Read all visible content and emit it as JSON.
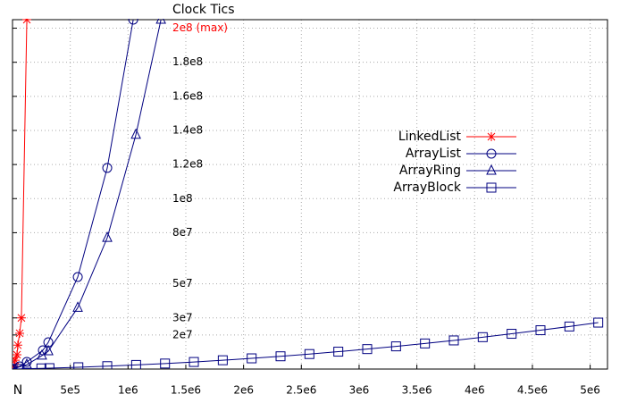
{
  "chart_data": {
    "type": "line",
    "title": "Clock Tics",
    "xlim": [
      0,
      5150000
    ],
    "ylim": [
      0,
      205000000
    ],
    "xticks": [
      {
        "value": 0,
        "label": "N"
      },
      {
        "value": 500000,
        "label": "5e5"
      },
      {
        "value": 1000000,
        "label": "1e6"
      },
      {
        "value": 1500000,
        "label": "1.5e6"
      },
      {
        "value": 2000000,
        "label": "2e6"
      },
      {
        "value": 2500000,
        "label": "2.5e6"
      },
      {
        "value": 3000000,
        "label": "3e6"
      },
      {
        "value": 3500000,
        "label": "3.5e6"
      },
      {
        "value": 4000000,
        "label": "4e6"
      },
      {
        "value": 4500000,
        "label": "4.5e6"
      },
      {
        "value": 5000000,
        "label": "5e6"
      }
    ],
    "yticks": [
      {
        "value": 20000000,
        "label": "2e7"
      },
      {
        "value": 30000000,
        "label": "3e7"
      },
      {
        "value": 50000000,
        "label": "5e7"
      },
      {
        "value": 80000000,
        "label": "8e7"
      },
      {
        "value": 100000000,
        "label": "1e8"
      },
      {
        "value": 120000000,
        "label": "1.2e8"
      },
      {
        "value": 140000000,
        "label": "1.4e8"
      },
      {
        "value": 160000000,
        "label": "1.6e8"
      },
      {
        "value": 180000000,
        "label": "1.8e8"
      },
      {
        "value": 200000000,
        "label": "2e8 (max)"
      }
    ],
    "grid": true,
    "series": [
      {
        "name": "LinkedList",
        "color": "#ff0000",
        "marker": "star",
        "x": [
          15000,
          23000,
          39000,
          46000,
          62000,
          77000,
          124000
        ],
        "values": [
          1600000,
          5200000,
          8400000,
          14000000,
          21000000,
          30000000,
          205000000
        ]
      },
      {
        "name": "ArrayList",
        "color": "#000080",
        "marker": "circle",
        "x": [
          0,
          62000,
          124000,
          263000,
          310000,
          565000,
          820000,
          1045000
        ],
        "values": [
          0,
          1600000,
          4200000,
          11000000,
          15700000,
          54000000,
          118000000,
          205000000
        ]
      },
      {
        "name": "ArrayRing",
        "color": "#000080",
        "marker": "triangle",
        "x": [
          0,
          124000,
          255000,
          310000,
          565000,
          820000,
          1068000,
          1285000
        ],
        "values": [
          0,
          2600000,
          7900000,
          10500000,
          36000000,
          77000000,
          137500000,
          205000000
        ]
      },
      {
        "name": "ArrayBlock",
        "color": "#000080",
        "marker": "square",
        "x": [
          0,
          50000,
          250000,
          320000,
          570000,
          820000,
          1070000,
          1320000,
          1570000,
          1820000,
          2070000,
          2320000,
          2570000,
          2820000,
          3070000,
          3320000,
          3570000,
          3820000,
          4070000,
          4320000,
          4570000,
          4820000,
          5070000
        ],
        "values": [
          0,
          70000,
          400000,
          530000,
          1060000,
          1690000,
          2410000,
          3230000,
          4150000,
          5160000,
          6280000,
          7490000,
          8800000,
          10200000,
          11710000,
          13310000,
          15010000,
          16800000,
          18700000,
          20690000,
          22780000,
          24960000,
          27250000
        ]
      }
    ]
  }
}
